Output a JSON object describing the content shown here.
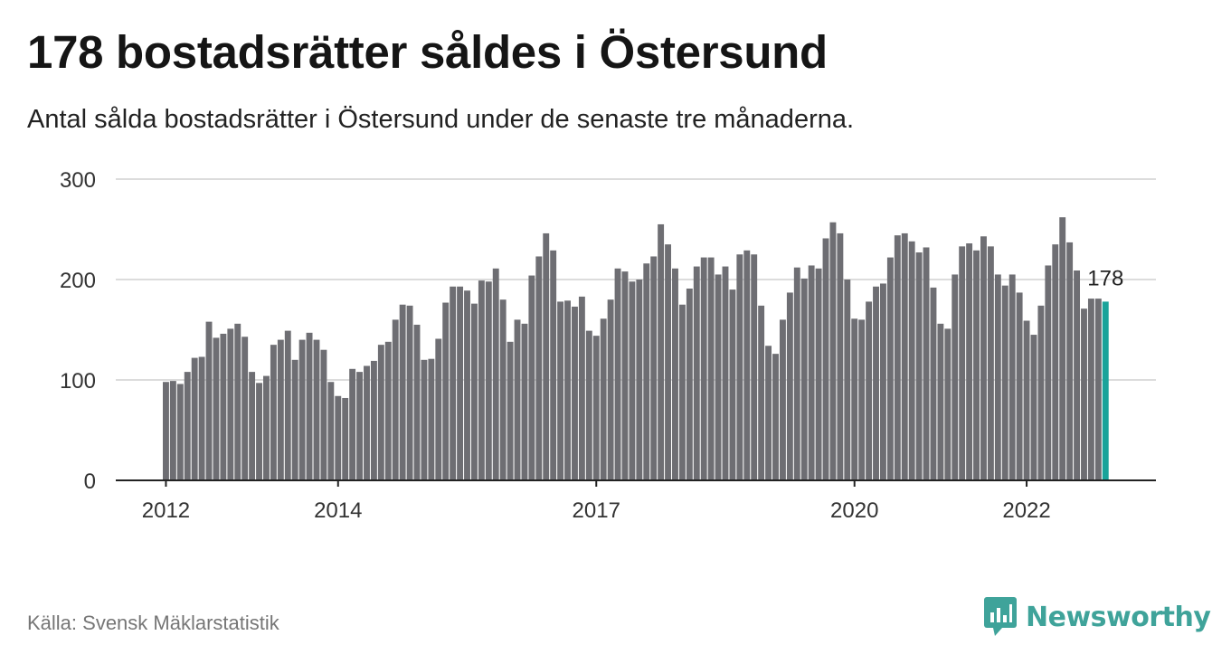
{
  "title": "178 bostadsrätter såldes i Östersund",
  "subtitle": "Antal sålda bostadsrätter i Östersund under de senaste tre månaderna.",
  "source": "Källa: Svensk Mäklarstatistik",
  "brand": {
    "name": "Newsworthy",
    "logo_icon": "newsworthy-chart-logo-icon"
  },
  "colors": {
    "bar": "#6e6e73",
    "highlight": "#1aa39a",
    "grid": "#dcdcdc",
    "axis": "#222222",
    "brand": "#3fa39a"
  },
  "chart_data": {
    "type": "bar",
    "title": "178 bostadsrätter såldes i Östersund",
    "ylim": [
      0,
      300
    ],
    "yticks": [
      "0",
      "100",
      "200",
      "300"
    ],
    "grid": true,
    "x_start": "2012-01",
    "x_interval": "month",
    "xticks": [
      {
        "label": "2012",
        "index": 0
      },
      {
        "label": "2014",
        "index": 24
      },
      {
        "label": "2017",
        "index": 60
      },
      {
        "label": "2020",
        "index": 96
      },
      {
        "label": "2022",
        "index": 120
      }
    ],
    "values": [
      98,
      99,
      96,
      108,
      122,
      123,
      158,
      142,
      146,
      151,
      156,
      143,
      108,
      97,
      104,
      135,
      140,
      149,
      120,
      140,
      147,
      140,
      130,
      98,
      84,
      82,
      111,
      108,
      114,
      119,
      135,
      138,
      160,
      175,
      174,
      155,
      120,
      121,
      141,
      177,
      193,
      193,
      189,
      176,
      199,
      198,
      211,
      180,
      138,
      160,
      156,
      204,
      223,
      246,
      229,
      178,
      179,
      173,
      183,
      149,
      144,
      161,
      180,
      211,
      208,
      198,
      200,
      216,
      223,
      255,
      235,
      211,
      175,
      191,
      213,
      222,
      222,
      205,
      213,
      190,
      225,
      229,
      225,
      174,
      134,
      126,
      160,
      187,
      212,
      201,
      214,
      211,
      241,
      257,
      246,
      200,
      161,
      160,
      178,
      193,
      196,
      222,
      244,
      246,
      238,
      227,
      232,
      192,
      156,
      151,
      205,
      233,
      236,
      229,
      243,
      233,
      205,
      194,
      205,
      187,
      159,
      145,
      174,
      214,
      235,
      262,
      237,
      209,
      171,
      181,
      181,
      178
    ],
    "highlight_index": 131,
    "highlight_label": "178"
  }
}
